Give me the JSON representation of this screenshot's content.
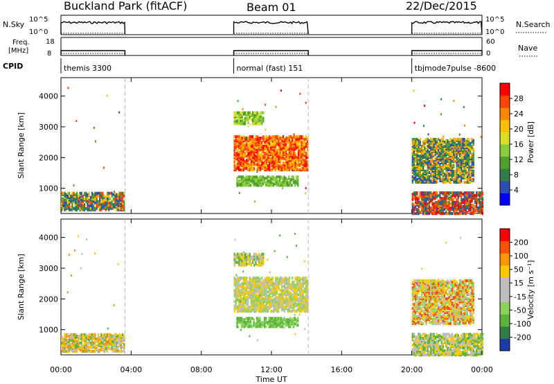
{
  "header": {
    "station": "Buckland Park (fitACF)",
    "beam": "Beam 01",
    "date": "22/Dec/2015"
  },
  "params": {
    "nsky_label": "N.Sky",
    "nsky_ticks": [
      "10^5",
      "10^0"
    ],
    "nsearch_label": "N.Search",
    "freq_label": [
      "Freq.",
      "[MHz]"
    ],
    "freq_ticks": [
      "18",
      "8"
    ],
    "nave_label": "Nave",
    "nave_ticks": [
      "60",
      "0"
    ],
    "cpid_label": "CPID",
    "cpid_modes": [
      {
        "label": "themis 3300",
        "start": 0.0,
        "end": 3.65
      },
      {
        "label": "normal (fast) 151",
        "start": 9.85,
        "end": 14.1
      },
      {
        "label": "tbjmode7pulse -8600",
        "start": 20.0,
        "end": 24.0
      }
    ]
  },
  "axes": {
    "ylabel": "Slant Range [km]",
    "xlabel": "Time UT",
    "xticks": [
      "00:00",
      "04:00",
      "08:00",
      "12:00",
      "16:00",
      "20:00",
      "00:00"
    ],
    "yticks": [
      "1000",
      "2000",
      "3000",
      "4000"
    ]
  },
  "power_scale": {
    "label": "Power [dB]",
    "ticks": [
      "28",
      "24",
      "20",
      "16",
      "12",
      "8",
      "4"
    ],
    "colors": [
      "#0000ff",
      "#2a4fb0",
      "#2e7d4a",
      "#50a030",
      "#8acd3c",
      "#d8e028",
      "#ffc000",
      "#ff8800",
      "#ff4400",
      "#ff0000"
    ]
  },
  "velocity_scale": {
    "label": "Velocity [m s⁻¹]",
    "ticks": [
      "200",
      "100",
      "50",
      "15",
      "-15",
      "-50",
      "-100",
      "-200"
    ],
    "colors": [
      "#1e3ca8",
      "#2e7d4a",
      "#5ab43c",
      "#8cd25a",
      "#bebebe",
      "#bebebe",
      "#ffc800",
      "#ff9600",
      "#ff5000",
      "#ff0000"
    ]
  },
  "chart_data": {
    "type": "heatmap",
    "x_range_hours": [
      0,
      24
    ],
    "y_range_km": [
      180,
      4600
    ],
    "markers_hours": [
      3.65,
      14.1
    ],
    "panels": [
      {
        "name": "power",
        "regions": [
          {
            "t0": 0.0,
            "t1": 3.6,
            "r0": 300,
            "r1": 880,
            "colors": [
              "#2a4fb0",
              "#2e7d4a",
              "#50a030",
              "#ff4400",
              "#ffc000"
            ]
          },
          {
            "t0": 9.85,
            "t1": 14.05,
            "r0": 1600,
            "r1": 2700,
            "colors": [
              "#ff4400",
              "#ff0000",
              "#ff8800",
              "#ffc000"
            ]
          },
          {
            "t0": 9.85,
            "t1": 11.5,
            "r0": 3100,
            "r1": 3500,
            "colors": [
              "#50a030",
              "#8acd3c",
              "#d8e028"
            ]
          },
          {
            "t0": 10.0,
            "t1": 13.5,
            "r0": 1100,
            "r1": 1400,
            "colors": [
              "#50a030",
              "#8acd3c"
            ]
          },
          {
            "t0": 20.0,
            "t1": 23.5,
            "r0": 1200,
            "r1": 2600,
            "colors": [
              "#2a4fb0",
              "#2e7d4a",
              "#50a030",
              "#ffc000",
              "#ff8800"
            ]
          },
          {
            "t0": 20.0,
            "t1": 24.0,
            "r0": 180,
            "r1": 900,
            "colors": [
              "#ff0000",
              "#ff4400",
              "#ff8800",
              "#2a4fb0",
              "#2e7d4a"
            ]
          }
        ]
      },
      {
        "name": "velocity",
        "regions": [
          {
            "t0": 0.0,
            "t1": 3.6,
            "r0": 300,
            "r1": 880,
            "colors": [
              "#bebebe",
              "#ffc800",
              "#ff9600",
              "#5ab43c"
            ]
          },
          {
            "t0": 9.85,
            "t1": 14.05,
            "r0": 1600,
            "r1": 2700,
            "colors": [
              "#bebebe",
              "#ffc800",
              "#8cd25a"
            ]
          },
          {
            "t0": 9.85,
            "t1": 11.5,
            "r0": 3100,
            "r1": 3500,
            "colors": [
              "#ffc800",
              "#5ab43c",
              "#bebebe"
            ]
          },
          {
            "t0": 10.0,
            "t1": 13.5,
            "r0": 1100,
            "r1": 1400,
            "colors": [
              "#5ab43c",
              "#8cd25a"
            ]
          },
          {
            "t0": 20.0,
            "t1": 23.5,
            "r0": 1200,
            "r1": 2600,
            "colors": [
              "#bebebe",
              "#ffc800",
              "#ff5000",
              "#8cd25a"
            ]
          },
          {
            "t0": 20.0,
            "t1": 24.0,
            "r0": 180,
            "r1": 900,
            "colors": [
              "#bebebe",
              "#ffc800",
              "#5ab43c"
            ]
          }
        ]
      }
    ]
  }
}
